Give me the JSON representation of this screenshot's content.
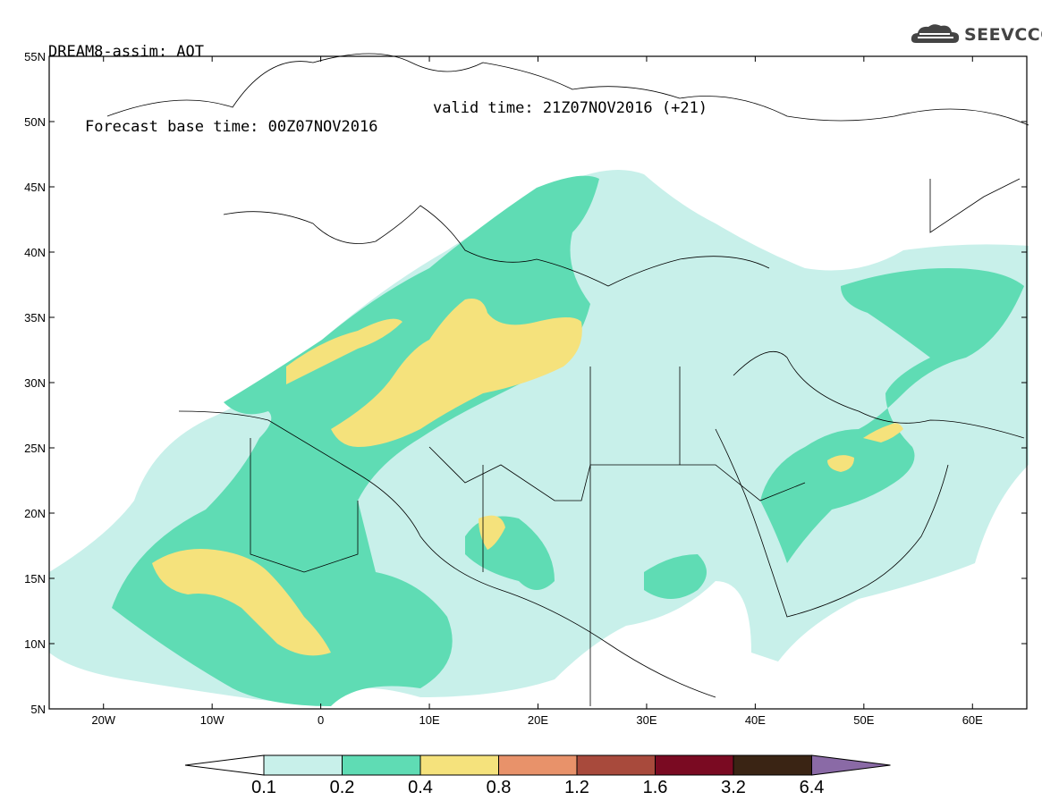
{
  "header": {
    "title": "DREAM8-assim: AOT",
    "base_time": "Forecast base time: 00Z07NOV2016",
    "valid_time": "valid time: 21Z07NOV2016 (+21)"
  },
  "logo": {
    "text": "SEEVCCC",
    "icon": "cloud-icon"
  },
  "map": {
    "lon_range": [
      -25,
      65
    ],
    "lat_range": [
      5,
      55
    ],
    "lon_ticks": [
      {
        "v": -20,
        "label": "20W"
      },
      {
        "v": -10,
        "label": "10W"
      },
      {
        "v": 0,
        "label": "0"
      },
      {
        "v": 10,
        "label": "10E"
      },
      {
        "v": 20,
        "label": "20E"
      },
      {
        "v": 30,
        "label": "30E"
      },
      {
        "v": 40,
        "label": "40E"
      },
      {
        "v": 50,
        "label": "50E"
      },
      {
        "v": 60,
        "label": "60E"
      }
    ],
    "lat_ticks": [
      {
        "v": 55,
        "label": "55N"
      },
      {
        "v": 50,
        "label": "50N"
      },
      {
        "v": 45,
        "label": "45N"
      },
      {
        "v": 40,
        "label": "40N"
      },
      {
        "v": 35,
        "label": "35N"
      },
      {
        "v": 30,
        "label": "30N"
      },
      {
        "v": 25,
        "label": "25N"
      },
      {
        "v": 20,
        "label": "20N"
      },
      {
        "v": 15,
        "label": "15N"
      },
      {
        "v": 10,
        "label": "10N"
      },
      {
        "v": 5,
        "label": "5N"
      }
    ]
  },
  "colorbar": {
    "levels": [
      "0.1",
      "0.2",
      "0.4",
      "0.8",
      "1.2",
      "1.6",
      "3.2",
      "6.4"
    ],
    "colors": [
      "#c8f0ea",
      "#5fdcb4",
      "#f5e27c",
      "#e8926a",
      "#a84a3c",
      "#7a0a22",
      "#3a2414"
    ],
    "over_color": "#8a6aa6",
    "under_color": "#ffffff"
  }
}
